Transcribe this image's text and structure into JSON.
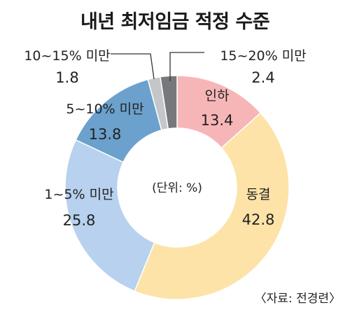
{
  "chart_data": {
    "type": "pie",
    "title": "내년 최저임금 적정 수준",
    "unit_label": "(단위: %)",
    "source": "〈자료: 전경련〉",
    "slices": [
      {
        "label": "인하",
        "value": 13.4,
        "value_text": "13.4",
        "color": "#f6b6b8"
      },
      {
        "label": "동결",
        "value": 42.8,
        "value_text": "42.8",
        "color": "#fde3a7"
      },
      {
        "label": "1~5% 미만",
        "value": 25.8,
        "value_text": "25.8",
        "color": "#b7d1ee"
      },
      {
        "label": "5~10% 미만",
        "value": 13.8,
        "value_text": "13.8",
        "color": "#6ba1cc"
      },
      {
        "label": "10~15% 미만",
        "value": 1.8,
        "value_text": "1.8",
        "color": "#c4c6c9"
      },
      {
        "label": "15~20% 미만",
        "value": 2.4,
        "value_text": "2.4",
        "color": "#77787b"
      }
    ]
  }
}
